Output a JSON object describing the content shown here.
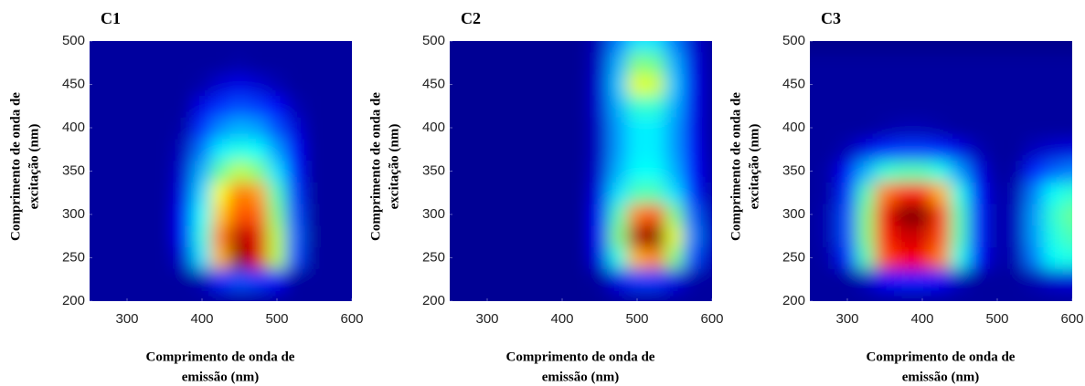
{
  "chart_data": [
    {
      "type": "heatmap",
      "title": "C1",
      "colormap": "jet",
      "x_label": [
        "Comprimento de onda de",
        "emissão (nm)"
      ],
      "y_label": [
        "Comprimento de onda de",
        "excitação (nm)"
      ],
      "x": [
        250,
        275,
        300,
        325,
        350,
        375,
        400,
        425,
        450,
        475,
        500,
        525,
        550,
        575,
        600
      ],
      "y": [
        200,
        225,
        250,
        275,
        300,
        325,
        350,
        375,
        400,
        425,
        450,
        475,
        500
      ],
      "z": [
        [
          0.03,
          0.03,
          0.03,
          0.03,
          0.03,
          0.03,
          0.03,
          0.03,
          0.03,
          0.03,
          0.03,
          0.03,
          0.03,
          0.03,
          0.03
        ],
        [
          0.03,
          0.03,
          0.03,
          0.03,
          0.03,
          0.03,
          0.05,
          0.16,
          0.2,
          0.18,
          0.12,
          0.03,
          0.03,
          0.03,
          0.03
        ],
        [
          0.03,
          0.03,
          0.03,
          0.03,
          0.03,
          0.08,
          0.35,
          0.7,
          1.0,
          0.9,
          0.55,
          0.2,
          0.03,
          0.03,
          0.03
        ],
        [
          0.03,
          0.03,
          0.03,
          0.03,
          0.03,
          0.12,
          0.4,
          0.75,
          0.95,
          0.9,
          0.55,
          0.22,
          0.03,
          0.03,
          0.03
        ],
        [
          0.03,
          0.03,
          0.03,
          0.03,
          0.03,
          0.12,
          0.38,
          0.68,
          0.8,
          0.78,
          0.5,
          0.2,
          0.03,
          0.03,
          0.03
        ],
        [
          0.03,
          0.03,
          0.03,
          0.03,
          0.03,
          0.1,
          0.34,
          0.62,
          0.76,
          0.72,
          0.45,
          0.18,
          0.03,
          0.03,
          0.03
        ],
        [
          0.03,
          0.03,
          0.03,
          0.03,
          0.03,
          0.08,
          0.3,
          0.47,
          0.56,
          0.5,
          0.35,
          0.15,
          0.03,
          0.03,
          0.03
        ],
        [
          0.03,
          0.03,
          0.03,
          0.03,
          0.03,
          0.06,
          0.24,
          0.36,
          0.4,
          0.38,
          0.28,
          0.12,
          0.03,
          0.03,
          0.03
        ],
        [
          0.03,
          0.03,
          0.03,
          0.03,
          0.03,
          0.04,
          0.17,
          0.26,
          0.3,
          0.28,
          0.2,
          0.09,
          0.03,
          0.03,
          0.03
        ],
        [
          0.03,
          0.03,
          0.03,
          0.03,
          0.03,
          0.03,
          0.1,
          0.17,
          0.2,
          0.18,
          0.12,
          0.05,
          0.03,
          0.03,
          0.03
        ],
        [
          0.03,
          0.03,
          0.03,
          0.03,
          0.03,
          0.03,
          0.04,
          0.08,
          0.1,
          0.08,
          0.05,
          0.03,
          0.03,
          0.03,
          0.03
        ],
        [
          0.03,
          0.03,
          0.03,
          0.03,
          0.03,
          0.03,
          0.03,
          0.03,
          0.04,
          0.03,
          0.03,
          0.03,
          0.03,
          0.03,
          0.03
        ],
        [
          0.03,
          0.03,
          0.03,
          0.03,
          0.03,
          0.03,
          0.03,
          0.03,
          0.03,
          0.03,
          0.03,
          0.03,
          0.03,
          0.03,
          0.03
        ]
      ],
      "xlim": [
        250,
        600
      ],
      "ylim": [
        200,
        500
      ],
      "xticks": [
        300,
        400,
        500,
        600
      ],
      "yticks": [
        200,
        250,
        300,
        350,
        400,
        450,
        500
      ]
    },
    {
      "type": "heatmap",
      "title": "C2",
      "colormap": "jet",
      "x_label": [
        "Comprimento de onda de",
        "emissão (nm)"
      ],
      "y_label": [
        "Comprimento de onda de",
        "excitação (nm)"
      ],
      "x": [
        250,
        275,
        300,
        325,
        350,
        375,
        400,
        425,
        450,
        475,
        500,
        525,
        550,
        575,
        600
      ],
      "y": [
        200,
        225,
        250,
        275,
        300,
        325,
        350,
        375,
        400,
        425,
        450,
        475,
        500
      ],
      "z": [
        [
          0.02,
          0.02,
          0.02,
          0.02,
          0.02,
          0.02,
          0.02,
          0.02,
          0.02,
          0.03,
          0.03,
          0.03,
          0.03,
          0.03,
          0.03
        ],
        [
          0.02,
          0.02,
          0.02,
          0.02,
          0.02,
          0.02,
          0.02,
          0.02,
          0.03,
          0.1,
          0.18,
          0.18,
          0.1,
          0.04,
          0.03
        ],
        [
          0.02,
          0.02,
          0.02,
          0.02,
          0.02,
          0.02,
          0.02,
          0.02,
          0.1,
          0.4,
          0.7,
          0.75,
          0.5,
          0.2,
          0.05
        ],
        [
          0.02,
          0.02,
          0.02,
          0.02,
          0.02,
          0.02,
          0.02,
          0.02,
          0.12,
          0.5,
          0.95,
          1.0,
          0.6,
          0.25,
          0.06
        ],
        [
          0.02,
          0.02,
          0.02,
          0.02,
          0.02,
          0.02,
          0.02,
          0.02,
          0.12,
          0.45,
          0.75,
          0.8,
          0.5,
          0.22,
          0.05
        ],
        [
          0.02,
          0.02,
          0.02,
          0.02,
          0.02,
          0.02,
          0.02,
          0.02,
          0.1,
          0.35,
          0.45,
          0.45,
          0.35,
          0.16,
          0.04
        ],
        [
          0.02,
          0.02,
          0.02,
          0.02,
          0.02,
          0.02,
          0.02,
          0.02,
          0.08,
          0.3,
          0.38,
          0.38,
          0.3,
          0.13,
          0.04
        ],
        [
          0.02,
          0.02,
          0.02,
          0.02,
          0.02,
          0.02,
          0.02,
          0.02,
          0.07,
          0.28,
          0.36,
          0.36,
          0.28,
          0.12,
          0.03
        ],
        [
          0.02,
          0.02,
          0.02,
          0.02,
          0.02,
          0.02,
          0.02,
          0.02,
          0.07,
          0.28,
          0.36,
          0.36,
          0.28,
          0.11,
          0.03
        ],
        [
          0.02,
          0.02,
          0.02,
          0.02,
          0.02,
          0.02,
          0.02,
          0.02,
          0.08,
          0.3,
          0.42,
          0.42,
          0.3,
          0.11,
          0.03
        ],
        [
          0.02,
          0.02,
          0.02,
          0.02,
          0.02,
          0.02,
          0.02,
          0.02,
          0.08,
          0.32,
          0.6,
          0.58,
          0.32,
          0.11,
          0.03
        ],
        [
          0.02,
          0.02,
          0.02,
          0.02,
          0.02,
          0.02,
          0.02,
          0.02,
          0.07,
          0.3,
          0.5,
          0.48,
          0.3,
          0.1,
          0.03
        ],
        [
          0.02,
          0.02,
          0.02,
          0.02,
          0.02,
          0.02,
          0.02,
          0.02,
          0.06,
          0.25,
          0.35,
          0.35,
          0.25,
          0.08,
          0.03
        ]
      ],
      "xlim": [
        250,
        600
      ],
      "ylim": [
        200,
        500
      ],
      "xticks": [
        300,
        400,
        500,
        600
      ],
      "yticks": [
        200,
        250,
        300,
        350,
        400,
        450,
        500
      ]
    },
    {
      "type": "heatmap",
      "title": "C3",
      "colormap": "jet",
      "x_label": [
        "Comprimento de onda de",
        "emissão (nm)"
      ],
      "y_label": [
        "Comprimento de onda de",
        "excitação (nm)"
      ],
      "x": [
        250,
        275,
        300,
        325,
        350,
        375,
        400,
        425,
        450,
        475,
        500,
        525,
        550,
        575,
        600
      ],
      "y": [
        200,
        225,
        250,
        275,
        300,
        325,
        350,
        375,
        400,
        425,
        450,
        475,
        500
      ],
      "z": [
        [
          0.03,
          0.03,
          0.03,
          0.03,
          0.03,
          0.03,
          0.03,
          0.03,
          0.03,
          0.03,
          0.03,
          0.03,
          0.03,
          0.03,
          0.03
        ],
        [
          0.03,
          0.03,
          0.03,
          0.06,
          0.12,
          0.15,
          0.15,
          0.12,
          0.06,
          0.03,
          0.03,
          0.03,
          0.05,
          0.08,
          0.09
        ],
        [
          0.03,
          0.04,
          0.16,
          0.45,
          0.8,
          0.88,
          0.88,
          0.75,
          0.4,
          0.14,
          0.04,
          0.05,
          0.25,
          0.38,
          0.4
        ],
        [
          0.03,
          0.05,
          0.2,
          0.5,
          0.85,
          0.92,
          0.92,
          0.8,
          0.45,
          0.16,
          0.04,
          0.06,
          0.28,
          0.4,
          0.45
        ],
        [
          0.03,
          0.05,
          0.2,
          0.5,
          0.88,
          1.0,
          1.0,
          0.82,
          0.45,
          0.16,
          0.04,
          0.06,
          0.28,
          0.42,
          0.48
        ],
        [
          0.03,
          0.04,
          0.17,
          0.45,
          0.75,
          0.85,
          0.85,
          0.7,
          0.4,
          0.14,
          0.04,
          0.05,
          0.25,
          0.38,
          0.42
        ],
        [
          0.03,
          0.04,
          0.12,
          0.3,
          0.42,
          0.45,
          0.45,
          0.4,
          0.28,
          0.1,
          0.03,
          0.04,
          0.16,
          0.22,
          0.25
        ],
        [
          0.03,
          0.03,
          0.05,
          0.1,
          0.16,
          0.18,
          0.18,
          0.16,
          0.1,
          0.05,
          0.03,
          0.03,
          0.06,
          0.08,
          0.09
        ],
        [
          0.03,
          0.03,
          0.03,
          0.03,
          0.04,
          0.05,
          0.05,
          0.04,
          0.03,
          0.03,
          0.03,
          0.03,
          0.03,
          0.03,
          0.03
        ],
        [
          0.03,
          0.03,
          0.03,
          0.03,
          0.03,
          0.03,
          0.03,
          0.03,
          0.03,
          0.03,
          0.03,
          0.03,
          0.03,
          0.03,
          0.03
        ],
        [
          0.03,
          0.03,
          0.03,
          0.03,
          0.03,
          0.03,
          0.03,
          0.03,
          0.03,
          0.03,
          0.03,
          0.03,
          0.03,
          0.03,
          0.03
        ],
        [
          0.03,
          0.03,
          0.03,
          0.03,
          0.03,
          0.03,
          0.03,
          0.03,
          0.03,
          0.03,
          0.03,
          0.03,
          0.03,
          0.03,
          0.03
        ],
        [
          0.01,
          0.01,
          0.01,
          0.01,
          0.01,
          0.01,
          0.01,
          0.01,
          0.01,
          0.01,
          0.01,
          0.01,
          0.01,
          0.01,
          0.01
        ]
      ],
      "xlim": [
        250,
        600
      ],
      "ylim": [
        200,
        500
      ],
      "xticks": [
        300,
        400,
        500,
        600
      ],
      "yticks": [
        200,
        250,
        300,
        350,
        400,
        450,
        500
      ]
    }
  ]
}
